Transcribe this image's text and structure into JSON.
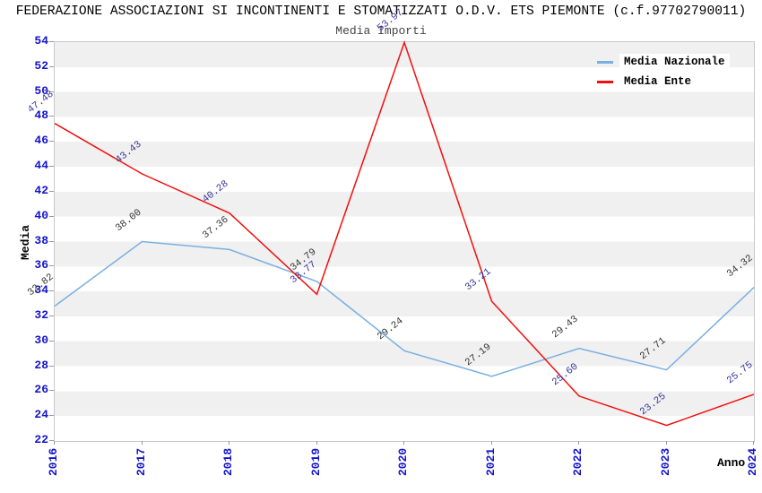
{
  "header": {
    "title": "FEDERAZIONE ASSOCIAZIONI SI INCONTINENTI E STOMATIZZATI O.D.V. ETS PIEMONTE (c.f.97702790011)",
    "subtitle": "Media Importi"
  },
  "chart_data": {
    "type": "line",
    "x": [
      2016,
      2017,
      2018,
      2019,
      2020,
      2021,
      2022,
      2023,
      2024
    ],
    "xlabel": "Anno",
    "ylabel": "Media",
    "ylim": [
      22,
      54
    ],
    "ytick_step": 2,
    "grid": "horizontal-striped-bands",
    "legend_position": "top-right",
    "series": [
      {
        "name": "Media Nazionale",
        "color": "#79afe1",
        "label_color": "#333333",
        "values": [
          32.82,
          38.0,
          37.36,
          34.79,
          29.24,
          27.19,
          29.43,
          27.71,
          34.32
        ]
      },
      {
        "name": "Media Ente",
        "color": "#f40d0d",
        "label_color": "#333399",
        "values": [
          47.48,
          43.43,
          40.28,
          33.77,
          53.97,
          33.21,
          25.6,
          23.25,
          25.75
        ]
      }
    ]
  },
  "colors": {
    "tick_label": "#1414cc",
    "band": "#f0f0f0",
    "plot_background": "#ffffff",
    "plot_border": "#c9c9c9",
    "title": "#000000",
    "subtitle": "#444444"
  }
}
